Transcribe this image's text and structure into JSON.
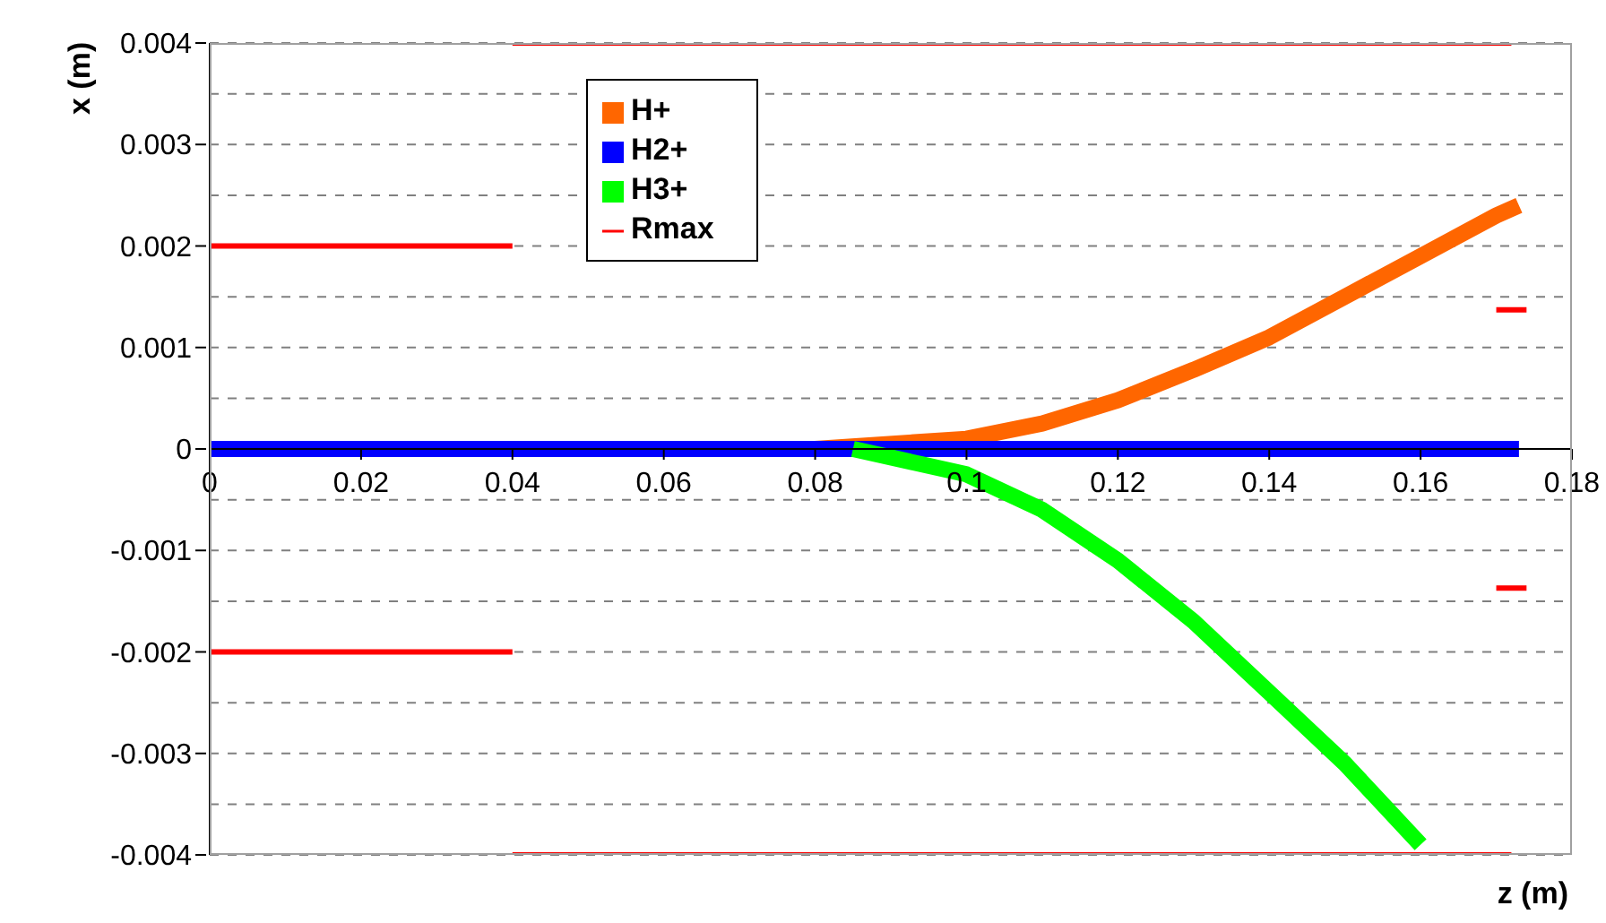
{
  "chart_data": {
    "type": "line",
    "xlabel": "z (m)",
    "ylabel": "x (m)",
    "xlim": [
      0,
      0.18
    ],
    "xticks": [
      0,
      0.02,
      0.04,
      0.06,
      0.08,
      0.1,
      0.12,
      0.14,
      0.16,
      0.18
    ],
    "ylim": [
      -0.004,
      0.004
    ],
    "yticks": [
      -0.004,
      {
        "value": -0.0035,
        "label": null
      },
      -0.003,
      {
        "value": -0.0025,
        "label": null
      },
      -0.002,
      {
        "value": -0.0015,
        "label": null
      },
      -0.001,
      {
        "value": -0.0005,
        "label": null
      },
      0,
      {
        "value": 0.0005,
        "label": null
      },
      0.001,
      {
        "value": 0.0015,
        "label": null
      },
      0.002,
      {
        "value": 0.0025,
        "label": null
      },
      0.003,
      {
        "value": 0.0035,
        "label": null
      },
      0.004
    ],
    "grid": "y",
    "legend": "top left",
    "series": [
      {
        "name": "H+",
        "color": "#ff6600",
        "x": [
          0.08,
          0.1,
          0.11,
          0.12,
          0.13,
          0.14,
          0.15,
          0.16,
          0.17,
          0.173
        ],
        "values": [
          0,
          0.0001,
          0.00025,
          0.00048,
          0.00078,
          0.0011,
          0.0015,
          0.0019,
          0.0023,
          0.0024
        ]
      },
      {
        "name": "H2+",
        "color": "#0000ff",
        "x": [
          0,
          0.173
        ],
        "values": [
          0,
          0
        ]
      },
      {
        "name": "H3+",
        "color": "#00ff00",
        "x": [
          0.085,
          0.1,
          0.11,
          0.12,
          0.13,
          0.14,
          0.15,
          0.16
        ],
        "values": [
          0,
          -0.00025,
          -0.0006,
          -0.0011,
          -0.0017,
          -0.0024,
          -0.0031,
          -0.0039
        ]
      },
      {
        "name": "Rmax",
        "color": "#ff0000",
        "x": [
          0,
          0.04
        ],
        "values": [
          0.002,
          0.002
        ]
      },
      {
        "color": "#ff0000",
        "x": [
          0.04,
          0.172
        ],
        "values": [
          0.004,
          0.004
        ]
      },
      {
        "color": "#ff0000",
        "x": [
          0,
          0.04
        ],
        "values": [
          -0.002,
          -0.002
        ]
      },
      {
        "color": "#ff0000",
        "x": [
          0.04,
          0.172
        ],
        "values": [
          -0.004,
          -0.004
        ]
      },
      {
        "color": "#ff0000",
        "x": [
          0.17,
          0.174
        ],
        "values": [
          0.00137,
          0.00137
        ]
      },
      {
        "color": "#ff0000",
        "x": [
          0.17,
          0.174
        ],
        "values": [
          -0.00137,
          -0.00137
        ]
      }
    ]
  }
}
